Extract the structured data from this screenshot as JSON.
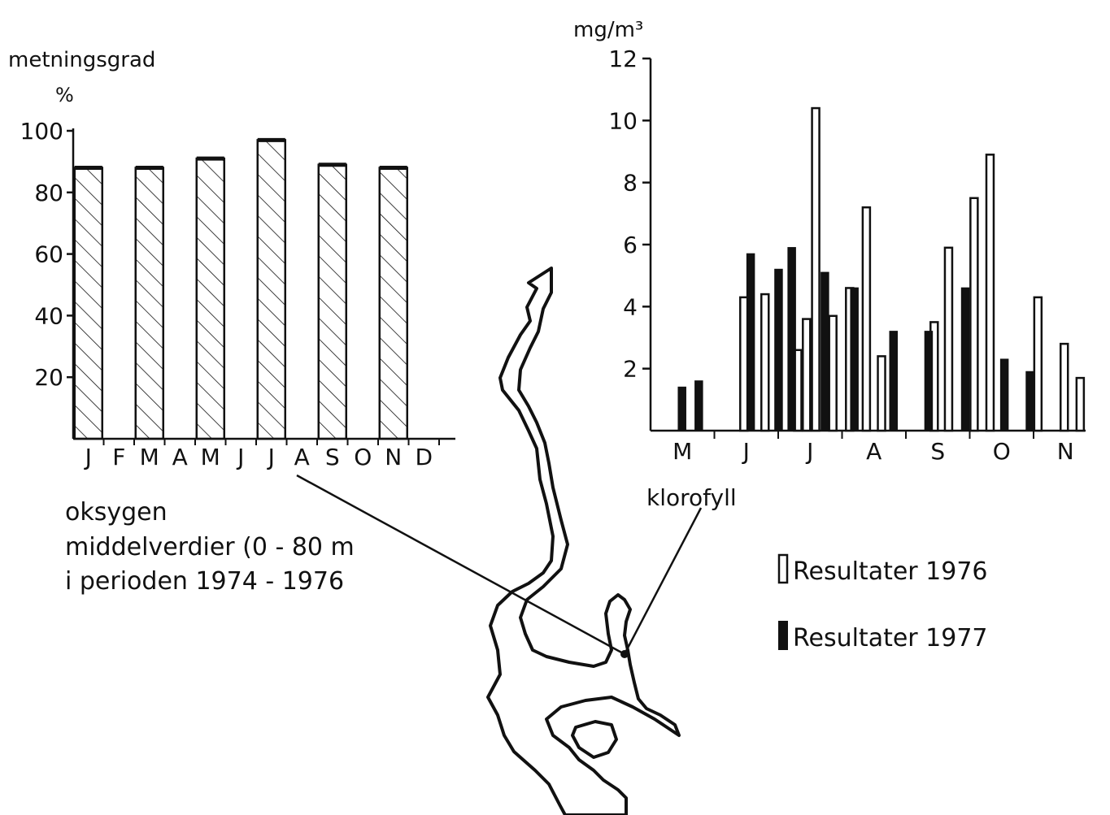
{
  "chart_data": [
    {
      "type": "bar",
      "ylabel": "metningsgrad",
      "yunit": "%",
      "ylim": [
        0,
        100
      ],
      "yticks": [
        20,
        40,
        60,
        80,
        100
      ],
      "months": [
        "J",
        "F",
        "M",
        "A",
        "M",
        "J",
        "J",
        "A",
        "S",
        "O",
        "N",
        "D"
      ],
      "bars": [
        {
          "month_index": 0,
          "value": 88
        },
        {
          "month_index": 2,
          "value": 88
        },
        {
          "month_index": 4,
          "value": 91
        },
        {
          "month_index": 6,
          "value": 97
        },
        {
          "month_index": 8,
          "value": 89
        },
        {
          "month_index": 10,
          "value": 88
        }
      ],
      "pattern": "hatched",
      "caption": [
        "oksygen",
        "middelverdier (0 - 80 m",
        "i perioden 1974 - 1976"
      ]
    },
    {
      "type": "bar",
      "yunit": "mg/m³",
      "ylim": [
        0,
        12
      ],
      "yticks": [
        2,
        4,
        6,
        8,
        10,
        12
      ],
      "months": [
        "M",
        "J",
        "J",
        "A",
        "S",
        "O",
        "N"
      ],
      "annotation": "klorofyll",
      "series": [
        {
          "name": "Resultater 1976",
          "style": "open",
          "points": [
            {
              "month": 1.85,
              "value": 4.3
            },
            {
              "month": 2.38,
              "value": 4.4
            },
            {
              "month": 3.2,
              "value": 2.6
            },
            {
              "month": 3.42,
              "value": 3.6
            },
            {
              "month": 3.65,
              "value": 10.4
            },
            {
              "month": 4.08,
              "value": 3.7
            },
            {
              "month": 4.5,
              "value": 4.6
            },
            {
              "month": 4.92,
              "value": 7.2
            },
            {
              "month": 5.3,
              "value": 2.4
            },
            {
              "month": 6.62,
              "value": 3.5
            },
            {
              "month": 6.98,
              "value": 5.9
            },
            {
              "month": 7.62,
              "value": 7.5
            },
            {
              "month": 8.02,
              "value": 8.9
            },
            {
              "month": 9.22,
              "value": 4.3
            },
            {
              "month": 9.88,
              "value": 2.8
            },
            {
              "month": 10.28,
              "value": 1.7
            }
          ]
        },
        {
          "name": "Resultater 1977",
          "style": "filled",
          "points": [
            {
              "month": 0.3,
              "value": 1.4
            },
            {
              "month": 0.72,
              "value": 1.6
            },
            {
              "month": 2.02,
              "value": 5.7
            },
            {
              "month": 2.72,
              "value": 5.2
            },
            {
              "month": 3.05,
              "value": 5.9
            },
            {
              "month": 3.88,
              "value": 5.1
            },
            {
              "month": 4.62,
              "value": 4.6
            },
            {
              "month": 5.6,
              "value": 3.2
            },
            {
              "month": 6.48,
              "value": 3.2
            },
            {
              "month": 7.4,
              "value": 4.6
            },
            {
              "month": 8.38,
              "value": 2.3
            },
            {
              "month": 9.02,
              "value": 1.9
            }
          ]
        }
      ]
    }
  ],
  "legend": {
    "entry_1976": "Resultater 1976",
    "entry_1977": "Resultater 1977"
  }
}
